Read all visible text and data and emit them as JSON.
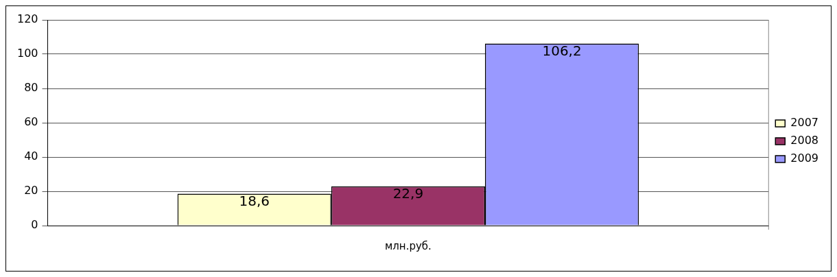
{
  "chart_data": {
    "type": "bar",
    "categories": [
      "млн.руб."
    ],
    "series": [
      {
        "name": "2007",
        "color": "#ffffcc",
        "values": [
          18.6
        ],
        "value_labels": [
          "18,6"
        ]
      },
      {
        "name": "2008",
        "color": "#993366",
        "values": [
          22.9
        ],
        "value_labels": [
          "22,9"
        ]
      },
      {
        "name": "2009",
        "color": "#9999ff",
        "values": [
          106.2
        ],
        "value_labels": [
          "106,2"
        ]
      }
    ],
    "ylim": [
      0,
      120
    ],
    "yticks": [
      0,
      20,
      40,
      60,
      80,
      100,
      120
    ],
    "grid": "y",
    "legend": "right"
  }
}
